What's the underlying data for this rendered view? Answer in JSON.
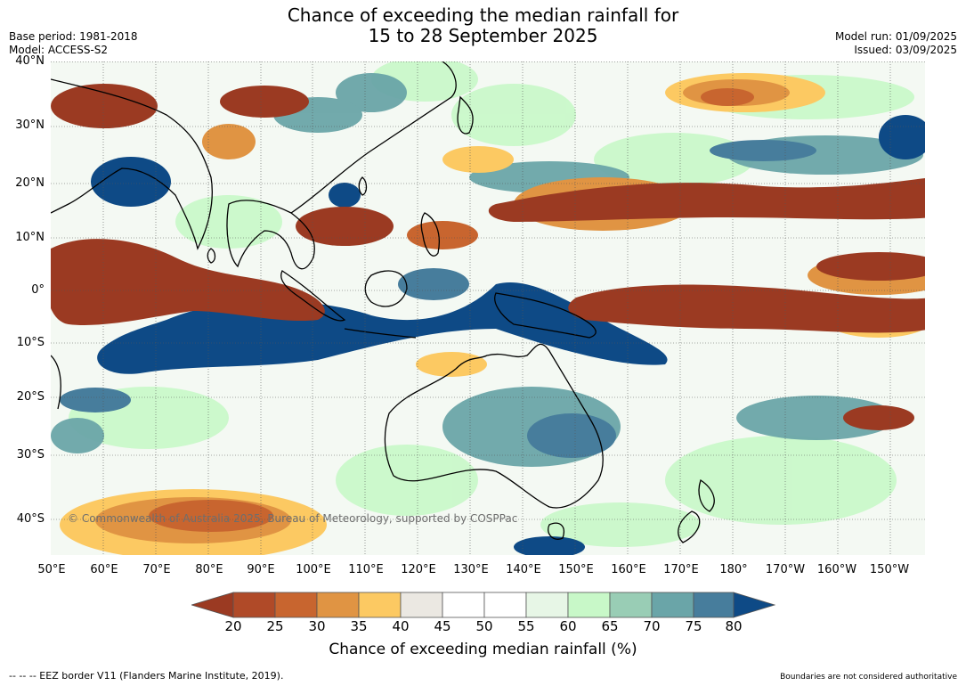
{
  "header": {
    "title_line1": "Chance of exceeding the median rainfall for",
    "title_line2": "15 to 28 September 2025",
    "base_period": "Base period: 1981-2018",
    "model": "Model: ACCESS-S2",
    "model_run": "Model run: 01/09/2025",
    "issued": "Issued: 03/09/2025"
  },
  "map": {
    "lat_labels": [
      "40°N",
      "30°N",
      "20°N",
      "10°N",
      "0°",
      "10°S",
      "20°S",
      "30°S",
      "40°S"
    ],
    "lon_labels": [
      "50°E",
      "60°E",
      "70°E",
      "80°E",
      "90°E",
      "100°E",
      "110°E",
      "120°E",
      "130°E",
      "140°E",
      "150°E",
      "160°E",
      "170°E",
      "180°",
      "170°W",
      "160°W",
      "150°W"
    ],
    "copyright": "© Commonwealth of Australia 2025, Bureau of Meteorology, supported by COSPPac",
    "colors": {
      "lt20": "#9b3a22",
      "20": "#b04a28",
      "25": "#c8652f",
      "30": "#e09443",
      "35": "#fcc962",
      "40": "#ebe8e2",
      "45": "#ffffff",
      "50": "#ffffff",
      "55": "#e7f6e6",
      "60": "#c8f8c8",
      "65": "#99cdb5",
      "70": "#6aa5a8",
      "75": "#477d9c",
      "gt80": "#0e4a86",
      "land_outline": "#000000",
      "grid": "#555555"
    }
  },
  "colorbar": {
    "ticks": [
      "20",
      "25",
      "30",
      "35",
      "40",
      "45",
      "50",
      "55",
      "60",
      "65",
      "70",
      "75",
      "80"
    ],
    "label": "Chance of exceeding median rainfall (%)"
  },
  "footer": {
    "eez_note": "--  --  -- EEZ border V11 (Flanders Marine Institute, 2019).",
    "disclaimer": "Boundaries are not considered authoritative"
  }
}
